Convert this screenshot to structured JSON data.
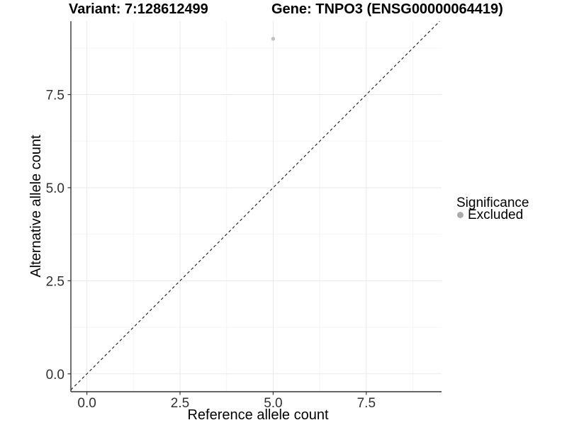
{
  "header": {
    "variant_title": "Variant: 7:128612499",
    "gene_title": "Gene: TNPO3 (ENSG00000064419)"
  },
  "chart_data": {
    "type": "scatter",
    "title_left": "Variant: 7:128612499",
    "title_right": "Gene: TNPO3 (ENSG00000064419)",
    "xlabel": "Reference allele count",
    "ylabel": "Alternative allele count",
    "xlim": [
      -0.43,
      9.52
    ],
    "ylim": [
      -0.48,
      9.47
    ],
    "x_ticks": [
      0.0,
      2.5,
      5.0,
      7.5
    ],
    "y_ticks": [
      0.0,
      2.5,
      5.0,
      7.5
    ],
    "x_minor_ticks": [
      1.25,
      3.75,
      6.25,
      8.75
    ],
    "y_minor_ticks": [
      1.25,
      3.75,
      6.25,
      8.75
    ],
    "tick_decimals": 1,
    "grid": {
      "major_color": "#e9e9e9",
      "minor_color": "#f5f5f5",
      "on": true
    },
    "axis_color": "#333333",
    "tick_label_color": "#303030",
    "identity_line": {
      "slope": 1,
      "intercept": 0,
      "style": "dashed",
      "color": "#1a1a1a"
    },
    "series": [
      {
        "name": "Excluded",
        "color": "#c0c0c0",
        "points": [
          {
            "x": 5,
            "y": 9
          }
        ]
      }
    ],
    "legend": {
      "title": "Significance",
      "position": "right",
      "items": [
        {
          "label": "Excluded",
          "color": "#ababab"
        }
      ]
    }
  }
}
